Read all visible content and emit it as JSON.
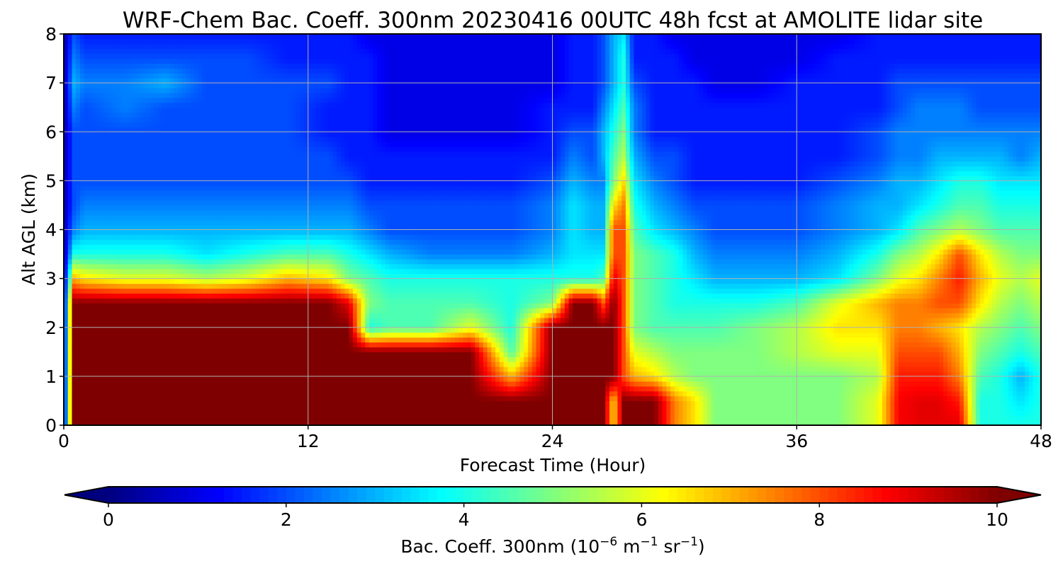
{
  "chart_data": {
    "type": "heatmap",
    "title": "WRF-Chem Bac. Coeff. 300nm  20230416 00UTC 48h fcst at AMOLITE lidar site",
    "xlabel": "Forecast Time (Hour)",
    "ylabel": "Alt AGL (km)",
    "xlim": [
      0,
      48
    ],
    "ylim": [
      0,
      8
    ],
    "xticks": [
      0,
      12,
      24,
      36,
      48
    ],
    "yticks": [
      0,
      1,
      2,
      3,
      4,
      5,
      6,
      7,
      8
    ],
    "grid": true,
    "colormap": "jet",
    "colorbar": {
      "label_text": "Bac. Coeff. 300nm  (10",
      "label_exp1": "−6",
      "label_mid": " m",
      "label_exp2": "−1",
      "label_mid2": " sr",
      "label_exp3": "−1",
      "label_end": ")",
      "range": [
        0,
        10
      ],
      "ticks": [
        0,
        2,
        4,
        6,
        8,
        10
      ],
      "extend": "both",
      "under_color": "#00007f",
      "over_color": "#7f0000"
    },
    "x": [
      0,
      0.5,
      1,
      3,
      5,
      7,
      9,
      11,
      13,
      14,
      15,
      16,
      18,
      20,
      22,
      24,
      25,
      26,
      26.5,
      27,
      27.5,
      28,
      29,
      30,
      31,
      32,
      34,
      36,
      38,
      40,
      41,
      42,
      43,
      44,
      45,
      46,
      47,
      48
    ],
    "y": [
      0,
      0.5,
      1,
      1.5,
      2,
      2.5,
      3,
      3.5,
      4,
      4.5,
      5,
      5.5,
      6,
      6.5,
      7,
      7.5,
      8
    ],
    "z": [
      [
        0.5,
        10,
        10,
        10,
        10,
        10,
        10,
        10,
        10,
        10,
        10,
        10,
        10,
        10,
        10,
        10,
        10,
        10,
        10,
        6.5,
        10,
        10,
        10,
        7.5,
        6.5,
        5,
        5,
        5,
        5,
        6,
        8.8,
        9,
        9,
        9,
        4,
        4,
        4,
        4
      ],
      [
        0.5,
        10,
        10,
        10,
        10,
        10,
        10,
        10,
        10,
        10,
        10,
        10,
        10,
        10,
        10,
        10,
        10,
        10,
        10,
        6.5,
        10,
        10,
        10,
        7.5,
        6.5,
        5,
        5,
        5,
        5,
        6,
        8.8,
        9,
        9,
        8.5,
        4,
        4,
        3.5,
        4
      ],
      [
        0.5,
        10,
        10,
        10,
        10,
        10,
        10,
        10,
        10,
        10,
        10,
        10,
        10,
        10,
        7,
        10,
        10,
        10,
        10,
        10,
        8,
        7,
        6.5,
        5.5,
        5,
        5,
        5,
        5,
        5,
        5.5,
        8.5,
        8.5,
        8.5,
        7.5,
        4.5,
        4,
        3,
        4
      ],
      [
        0.5,
        10,
        10,
        10,
        10,
        10,
        10,
        10,
        10,
        10,
        10,
        10,
        10,
        10,
        4.5,
        10,
        10,
        10,
        10,
        10,
        8,
        6,
        5.5,
        5,
        5,
        5,
        5,
        5.5,
        6,
        6,
        8,
        8,
        8,
        7,
        5,
        4.5,
        4,
        4.5
      ],
      [
        0.5,
        10,
        10,
        10,
        10,
        10,
        10,
        10,
        10,
        10,
        4,
        4.5,
        4.5,
        6,
        4,
        10,
        10,
        10,
        10,
        10,
        8,
        5,
        4.5,
        4.5,
        4.5,
        4.5,
        5,
        5.5,
        6.5,
        6.5,
        7.5,
        7.5,
        7,
        6.5,
        5.5,
        5,
        4.5,
        5
      ],
      [
        0.5,
        10,
        10,
        10,
        10,
        10,
        10,
        10,
        10,
        9,
        5,
        4.5,
        4.5,
        4.5,
        4,
        5,
        10,
        10,
        8,
        10,
        8,
        5,
        4.5,
        4,
        4,
        4,
        4,
        4.5,
        6,
        7,
        7.5,
        7.5,
        8,
        8,
        6.5,
        5.5,
        5,
        5.5
      ],
      [
        0.5,
        7,
        6.5,
        6,
        6,
        5.5,
        6,
        7,
        6.5,
        5,
        4.5,
        4,
        4,
        4,
        4,
        4,
        4,
        4,
        4.5,
        9,
        8,
        5,
        4.5,
        4,
        3.5,
        3,
        3,
        3,
        3.5,
        5,
        6,
        6.5,
        7.5,
        8.5,
        7,
        6,
        5.5,
        6
      ],
      [
        0.5,
        4,
        4,
        4,
        4,
        3.5,
        4,
        4.5,
        4.5,
        4,
        3.5,
        3,
        2.5,
        2.5,
        2.5,
        3,
        3.5,
        3.5,
        3.5,
        8,
        8,
        5,
        4.5,
        4,
        3,
        2.5,
        2.5,
        2.5,
        3,
        4,
        5,
        5.5,
        6.5,
        8,
        6.5,
        5.5,
        5,
        5
      ],
      [
        0.5,
        2.5,
        3,
        3,
        3,
        3,
        3,
        3,
        3,
        3,
        2.5,
        2,
        2,
        2,
        2,
        2.5,
        3.5,
        3,
        3,
        8,
        8,
        4.5,
        3.5,
        3,
        2.5,
        2,
        2,
        2,
        2.5,
        3,
        3.5,
        4.5,
        5,
        5.5,
        5,
        4.5,
        4.5,
        4.5
      ],
      [
        0.5,
        2,
        2.5,
        2.5,
        2.5,
        2.5,
        2.5,
        2.5,
        2.5,
        2.5,
        2,
        2,
        2,
        2,
        2,
        2.5,
        3.5,
        3,
        3,
        6.5,
        7.5,
        4,
        3,
        2.5,
        2,
        2,
        2,
        2,
        2.5,
        3,
        3,
        3.5,
        4,
        4.5,
        4.5,
        4,
        4,
        4
      ],
      [
        0.5,
        2,
        2,
        2,
        2,
        2,
        2,
        2,
        2,
        2,
        1.5,
        1.5,
        1.5,
        1.5,
        1.5,
        2,
        3,
        2.5,
        2.5,
        5,
        6.5,
        3.5,
        2.5,
        2,
        1.5,
        1.5,
        1.5,
        1.5,
        2,
        2.5,
        3,
        3,
        3.5,
        4,
        4,
        3.5,
        3.5,
        3.5
      ],
      [
        0.5,
        2,
        2,
        2,
        2,
        2,
        2,
        2,
        2,
        1.5,
        1.5,
        1.5,
        1.5,
        1.5,
        1.5,
        1.5,
        2.5,
        2,
        3,
        4.5,
        5.5,
        3,
        2,
        2,
        1.5,
        1.5,
        1.5,
        1.5,
        1.5,
        2,
        2.5,
        2.5,
        3,
        3,
        3,
        3,
        2.5,
        3
      ],
      [
        0.5,
        2,
        2,
        2,
        2,
        2,
        2,
        2,
        1.5,
        1.5,
        1.5,
        1,
        1,
        1,
        1,
        1.5,
        2,
        2,
        3,
        4,
        5,
        2.5,
        1.5,
        1.5,
        1.5,
        1.5,
        1.5,
        1.5,
        1.5,
        2,
        2.5,
        2.5,
        2.5,
        2.5,
        2.5,
        2.5,
        2.5,
        2.5
      ],
      [
        0.5,
        2.5,
        2,
        2.5,
        2,
        2,
        2,
        2,
        1.5,
        1.5,
        1.5,
        1,
        1,
        1,
        1,
        1.5,
        1.5,
        1.5,
        2.5,
        3.5,
        4.5,
        2.5,
        1.5,
        1.5,
        1.5,
        1.5,
        1.5,
        1.5,
        1.5,
        1.5,
        2,
        2.5,
        2.5,
        2.5,
        2,
        2,
        2,
        2
      ],
      [
        0.5,
        3,
        2.5,
        2.5,
        3,
        2,
        2,
        2,
        2,
        1.5,
        1.5,
        1,
        1,
        1,
        1,
        1,
        1.5,
        1.5,
        2,
        3,
        4,
        2,
        1.5,
        1.5,
        1.5,
        1,
        1,
        1.5,
        1.5,
        1.5,
        2,
        2,
        2,
        2,
        2,
        2,
        2,
        2
      ],
      [
        0.5,
        2.5,
        2,
        2,
        2,
        2,
        2,
        1.5,
        1.5,
        1.5,
        1.5,
        1,
        1,
        1,
        1,
        1,
        1.5,
        1.5,
        2,
        3,
        4,
        1.5,
        1.5,
        1.5,
        1,
        1,
        1,
        1,
        1.5,
        1.5,
        1.5,
        1.5,
        1.5,
        1.5,
        1.5,
        1.5,
        1.5,
        1.5
      ],
      [
        0.5,
        2,
        1.5,
        1.5,
        1.5,
        1.5,
        1.5,
        1.5,
        1.5,
        1.5,
        1,
        1,
        1,
        1,
        1,
        1,
        1.5,
        1.5,
        2,
        3,
        3.5,
        1.5,
        1.5,
        1,
        1,
        1,
        1,
        1,
        1,
        1.5,
        1.5,
        1.5,
        1.5,
        1.5,
        1.5,
        1.5,
        1.5,
        1.5
      ]
    ]
  }
}
